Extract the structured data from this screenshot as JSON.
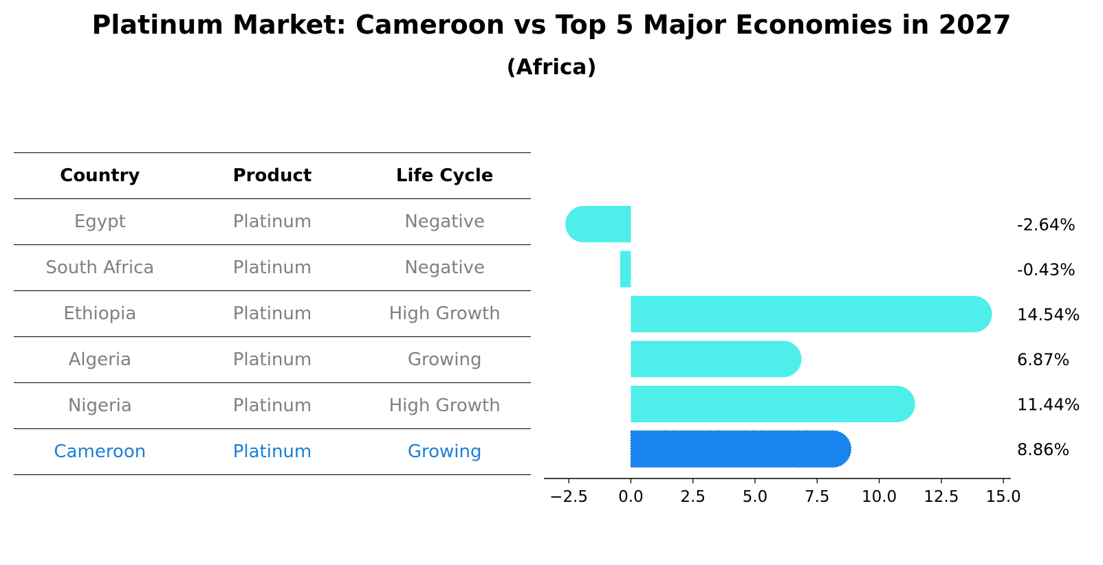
{
  "title": "Platinum Market: Cameroon vs Top 5 Major Economies in 2027",
  "subtitle": "(Africa)",
  "table": {
    "headers": [
      "Country",
      "Product",
      "Life Cycle"
    ],
    "rows": [
      {
        "country": "Egypt",
        "product": "Platinum",
        "life_cycle": "Negative"
      },
      {
        "country": "South Africa",
        "product": "Platinum",
        "life_cycle": "Negative"
      },
      {
        "country": "Ethiopia",
        "product": "Platinum",
        "life_cycle": "High Growth"
      },
      {
        "country": "Algeria",
        "product": "Platinum",
        "life_cycle": "Growing"
      },
      {
        "country": "Nigeria",
        "product": "Platinum",
        "life_cycle": "High Growth"
      },
      {
        "country": "Cameroon",
        "product": "Platinum",
        "life_cycle": "Growing"
      }
    ],
    "highlight_row": 5
  },
  "colors": {
    "bar": "#4eeeea",
    "highlight_bar": "#1884f0",
    "highlight_text": "#1a7fd8",
    "muted_text": "#808080"
  },
  "chart_data": {
    "type": "bar",
    "orientation": "horizontal",
    "categories": [
      "Egypt",
      "South Africa",
      "Ethiopia",
      "Algeria",
      "Nigeria",
      "Cameroon"
    ],
    "values": [
      -2.64,
      -0.43,
      14.54,
      6.87,
      11.44,
      8.86
    ],
    "value_labels": [
      "-2.64%",
      "-0.43%",
      "14.54%",
      "6.87%",
      "11.44%",
      "8.86%"
    ],
    "highlight": "Cameroon",
    "xlim": [
      -3.5,
      15.3
    ],
    "xticks": [
      -2.5,
      0.0,
      2.5,
      5.0,
      7.5,
      10.0,
      12.5,
      15.0
    ],
    "xtick_labels": [
      "−2.5",
      "0.0",
      "2.5",
      "5.0",
      "7.5",
      "10.0",
      "12.5",
      "15.0"
    ],
    "xlabel": "",
    "ylabel": "",
    "grid": false
  }
}
